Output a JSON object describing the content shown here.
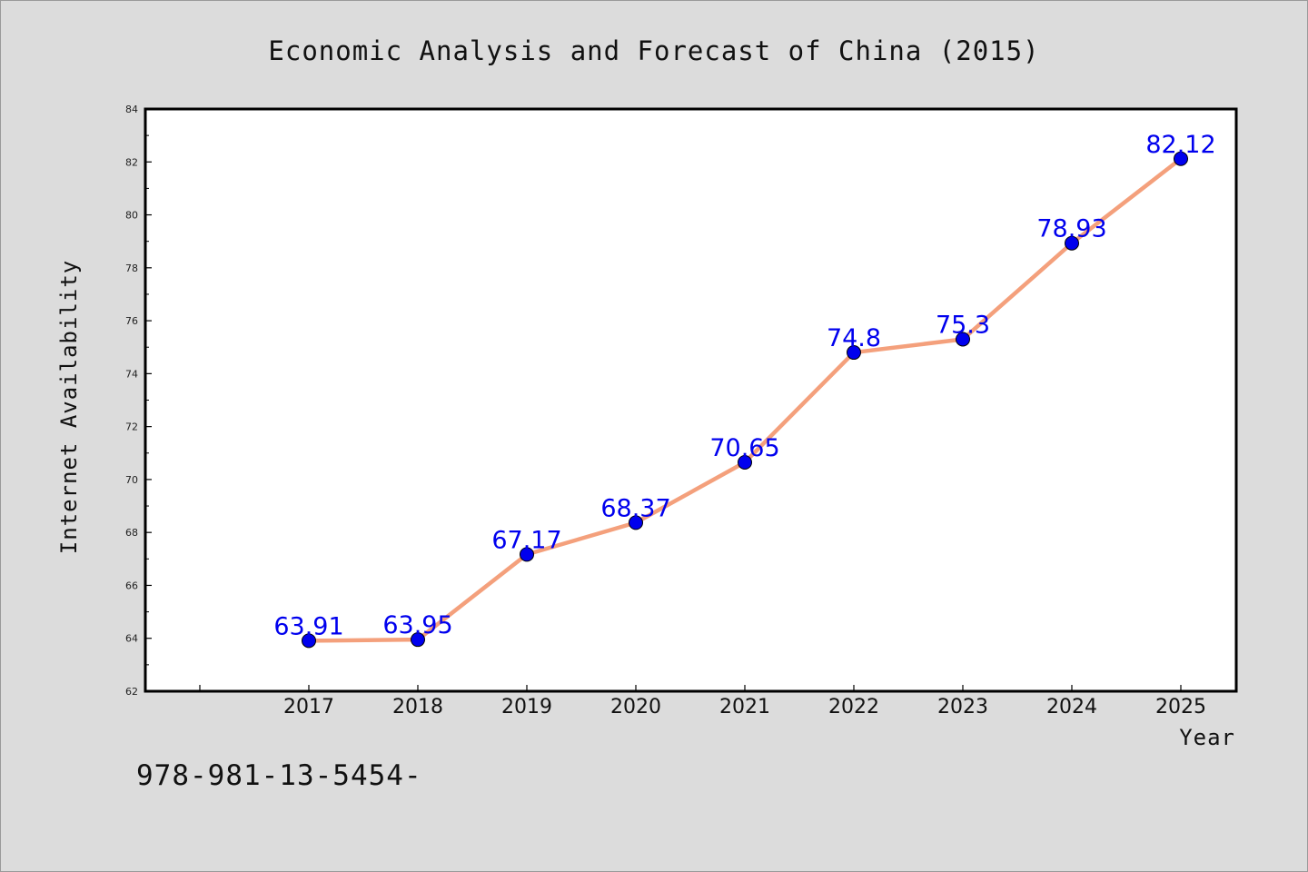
{
  "chart_data": {
    "type": "line",
    "title": "Economic Analysis and Forecast of China (2015)",
    "xlabel": "Year",
    "ylabel": "Internet Availability",
    "categories": [
      "2017",
      "2018",
      "2019",
      "2020",
      "2021",
      "2022",
      "2023",
      "2024",
      "2025"
    ],
    "values": [
      63.91,
      63.95,
      67.17,
      68.37,
      70.65,
      74.8,
      75.3,
      78.93,
      82.12
    ],
    "data_labels": [
      "63.91",
      "63.95",
      "67.17",
      "68.37",
      "70.65",
      "74.8",
      "75.3",
      "78.93",
      "82.12"
    ],
    "ylim": [
      62,
      84
    ],
    "yticks": [
      62,
      64,
      66,
      68,
      70,
      72,
      74,
      76,
      78,
      80,
      82,
      84
    ],
    "ytick_labels": [
      "62",
      "64",
      "66",
      "68",
      "70",
      "72",
      "74",
      "76",
      "78",
      "80",
      "82",
      "84"
    ],
    "grid": false,
    "legend": false,
    "colors": {
      "line": "#f4a07c",
      "marker": "#0000ee",
      "data_label": "#0000ee",
      "plot_background": "#ffffff",
      "figure_background": "#dcdcdc"
    }
  },
  "footer_text": "978-981-13-5454-"
}
